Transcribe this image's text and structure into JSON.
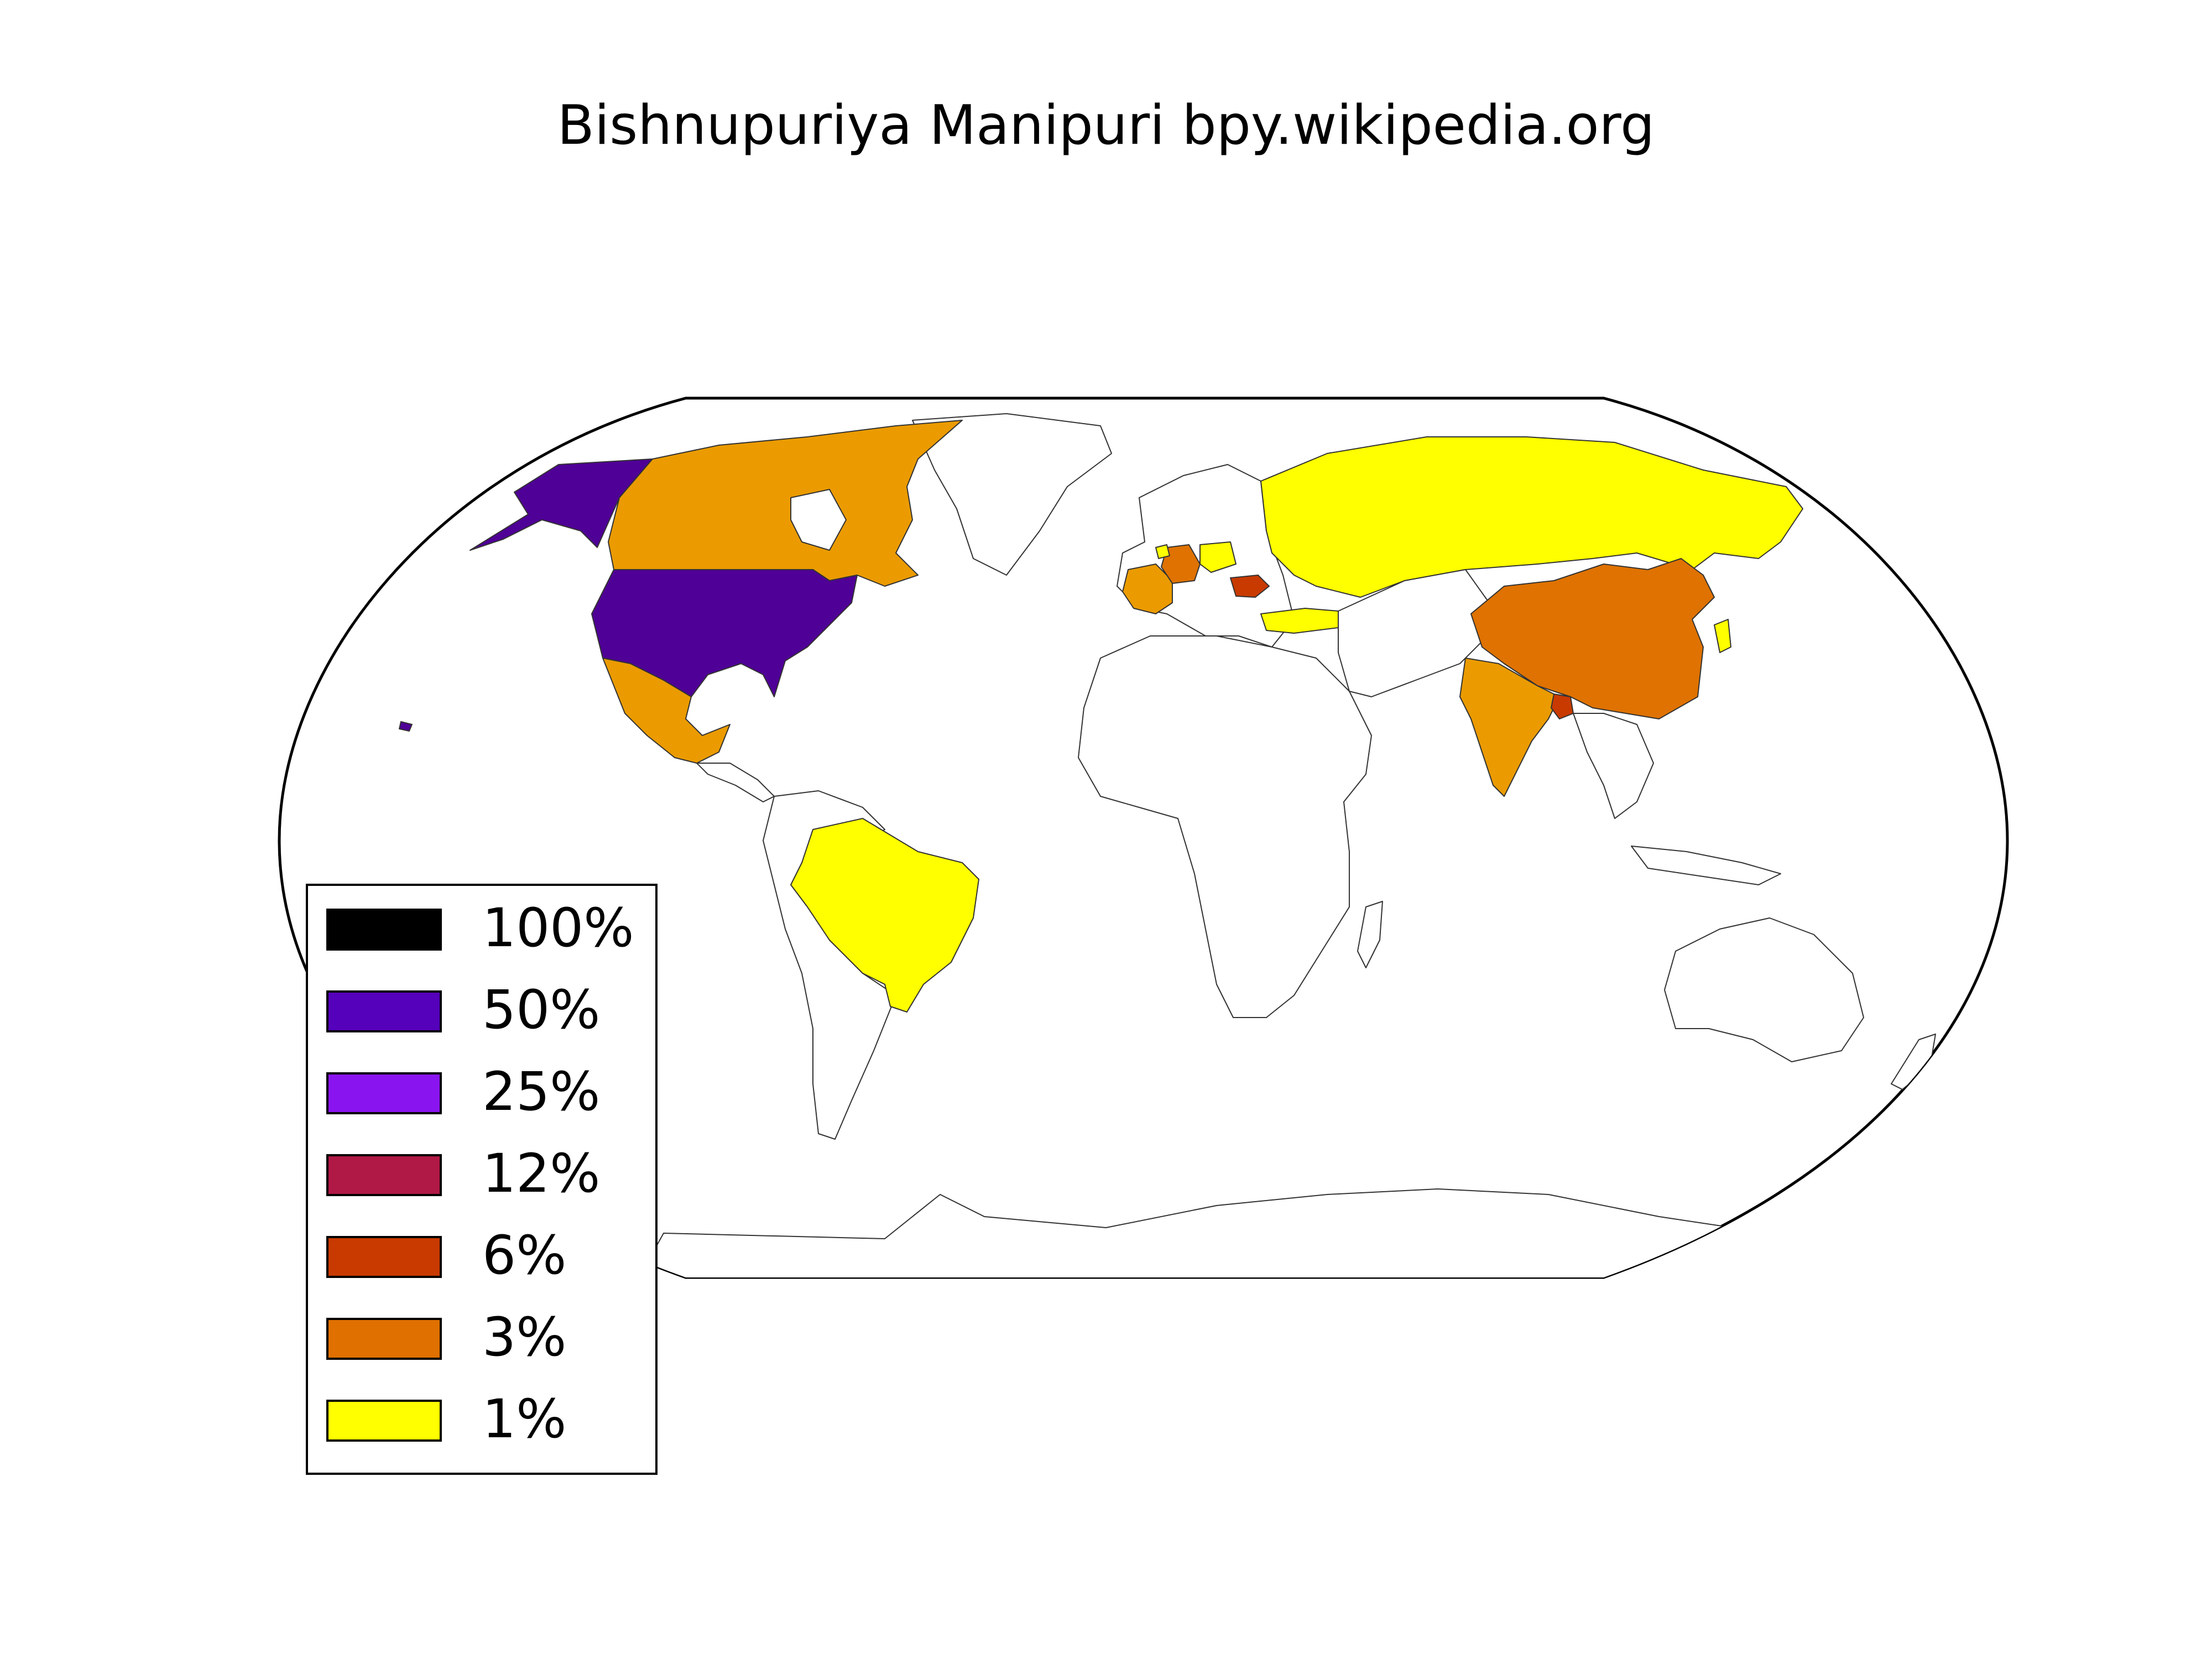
{
  "title": "Bishnupuriya Manipuri bpy.wikipedia.org",
  "legend": {
    "items": [
      {
        "label": "100%",
        "color": "#000000"
      },
      {
        "label": "50%",
        "color": "#5500bb"
      },
      {
        "label": "25%",
        "color": "#8a14f0"
      },
      {
        "label": "12%",
        "color": "#b01846"
      },
      {
        "label": "6%",
        "color": "#c83a00"
      },
      {
        "label": "3%",
        "color": "#e07000"
      },
      {
        "label": "1%",
        "color": "#ffff00"
      }
    ]
  },
  "map": {
    "projection": "robinson",
    "highlighted_regions": [
      {
        "region": "United States",
        "share_bin": "50%",
        "color": "#4f0096"
      },
      {
        "region": "Canada",
        "share_bin": "3%",
        "color": "#eb9b00"
      },
      {
        "region": "Mexico",
        "share_bin": "3%",
        "color": "#eb9b00"
      },
      {
        "region": "Brazil",
        "share_bin": "1%",
        "color": "#ffff00"
      },
      {
        "region": "Russia",
        "share_bin": "1%",
        "color": "#ffff00"
      },
      {
        "region": "China",
        "share_bin": "3%",
        "color": "#df7200"
      },
      {
        "region": "India",
        "share_bin": "3%",
        "color": "#eb9b00"
      },
      {
        "region": "Bangladesh",
        "share_bin": "6%",
        "color": "#c83a00"
      },
      {
        "region": "Romania",
        "share_bin": "6%",
        "color": "#c83a00"
      },
      {
        "region": "Germany",
        "share_bin": "3%",
        "color": "#df7200"
      },
      {
        "region": "France",
        "share_bin": "3%",
        "color": "#eb9b00"
      },
      {
        "region": "Poland",
        "share_bin": "1%",
        "color": "#ffff00"
      },
      {
        "region": "Turkey",
        "share_bin": "1%",
        "color": "#ffff00"
      },
      {
        "region": "Japan",
        "share_bin": "1%",
        "color": "#ffff00"
      },
      {
        "region": "Netherlands",
        "share_bin": "1%",
        "color": "#ffff00"
      }
    ]
  }
}
